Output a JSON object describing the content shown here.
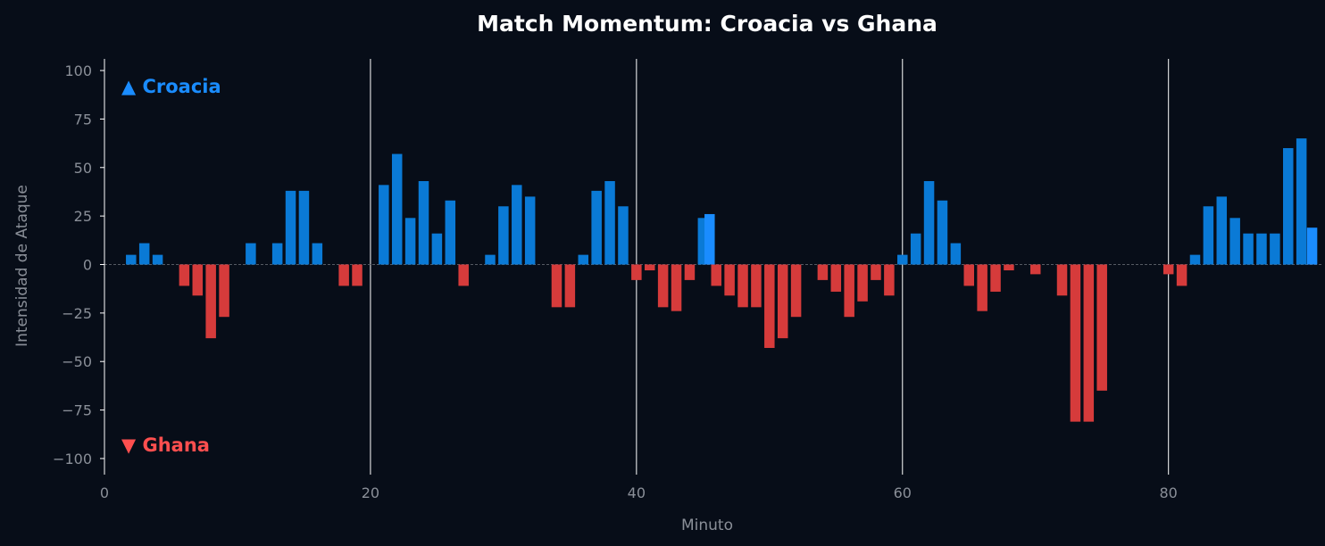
{
  "chart_data": {
    "type": "bar",
    "title": "Match Momentum: Croacia vs Ghana",
    "xlabel": "Minuto",
    "ylabel": "Intensidad de Ataque",
    "xlim": [
      0,
      91.5
    ],
    "ylim": [
      -106,
      106
    ],
    "xticks": [
      0,
      20,
      40,
      60,
      80
    ],
    "yticks": [
      100,
      75,
      50,
      25,
      0,
      -25,
      -50,
      -75,
      -100
    ],
    "ytick_labels": [
      "100",
      "75",
      "50",
      "25",
      "0",
      "−25",
      "−50",
      "−75",
      "−100"
    ],
    "period_lines": [
      20,
      40,
      60,
      80
    ],
    "legend": {
      "positive": "▲ Croacia",
      "negative": "▼ Ghana"
    },
    "colors": {
      "positive": "#0a7ad6",
      "negative": "#d63b3b",
      "highlight": "#1a8cff",
      "positive_label": "#1a8cff",
      "negative_label": "#ff4f4f",
      "background": "#070d18",
      "zero_line": "#555a63",
      "period_line": "#ffffff"
    },
    "highlight_minutes": [
      45.5,
      90.8
    ],
    "series": [
      {
        "points": [
          [
            2,
            5
          ],
          [
            3,
            11
          ],
          [
            4,
            5
          ],
          [
            5,
            0
          ],
          [
            6,
            -11
          ],
          [
            7,
            -16
          ],
          [
            8,
            -38
          ],
          [
            9,
            -27
          ],
          [
            10,
            0
          ],
          [
            11,
            11
          ],
          [
            12,
            0
          ],
          [
            13,
            11
          ],
          [
            14,
            38
          ],
          [
            15,
            38
          ],
          [
            16,
            11
          ],
          [
            17,
            0
          ],
          [
            18,
            -11
          ],
          [
            19,
            -11
          ],
          [
            20,
            0
          ],
          [
            21,
            41
          ],
          [
            22,
            57
          ],
          [
            23,
            24
          ],
          [
            24,
            43
          ],
          [
            25,
            16
          ],
          [
            26,
            33
          ],
          [
            27,
            -11
          ],
          [
            28,
            0
          ],
          [
            29,
            5
          ],
          [
            30,
            30
          ],
          [
            31,
            41
          ],
          [
            32,
            35
          ],
          [
            33,
            0
          ],
          [
            34,
            -22
          ],
          [
            35,
            -22
          ],
          [
            36,
            5
          ],
          [
            37,
            38
          ],
          [
            38,
            43
          ],
          [
            39,
            30
          ],
          [
            40,
            -8
          ],
          [
            41,
            -3
          ],
          [
            42,
            -22
          ],
          [
            43,
            -24
          ],
          [
            44,
            -8
          ],
          [
            45,
            24
          ],
          [
            45.5,
            26
          ],
          [
            46,
            -11
          ],
          [
            47,
            -16
          ],
          [
            48,
            -22
          ],
          [
            49,
            -22
          ],
          [
            50,
            -43
          ],
          [
            51,
            -38
          ],
          [
            52,
            -27
          ],
          [
            53,
            0
          ],
          [
            54,
            -8
          ],
          [
            55,
            -14
          ],
          [
            56,
            -27
          ],
          [
            57,
            -19
          ],
          [
            58,
            -8
          ],
          [
            59,
            -16
          ],
          [
            60,
            5
          ],
          [
            61,
            16
          ],
          [
            62,
            43
          ],
          [
            63,
            33
          ],
          [
            64,
            11
          ],
          [
            65,
            -11
          ],
          [
            66,
            -24
          ],
          [
            67,
            -14
          ],
          [
            68,
            -3
          ],
          [
            69,
            0
          ],
          [
            70,
            -5
          ],
          [
            71,
            0
          ],
          [
            72,
            -16
          ],
          [
            73,
            -81
          ],
          [
            74,
            -81
          ],
          [
            75,
            -65
          ],
          [
            76,
            0
          ],
          [
            77,
            0
          ],
          [
            78,
            0
          ],
          [
            79,
            0
          ],
          [
            80,
            -5
          ],
          [
            81,
            -11
          ],
          [
            82,
            5
          ],
          [
            83,
            30
          ],
          [
            84,
            35
          ],
          [
            85,
            24
          ],
          [
            86,
            16
          ],
          [
            87,
            16
          ],
          [
            88,
            16
          ],
          [
            89,
            60
          ],
          [
            90,
            65
          ],
          [
            90.8,
            19
          ]
        ]
      }
    ]
  }
}
